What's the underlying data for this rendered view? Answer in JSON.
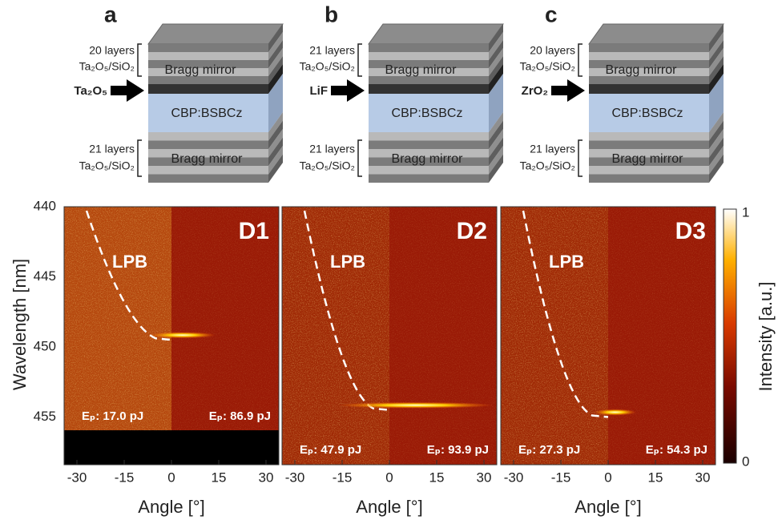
{
  "schematics": [
    {
      "letter": "a",
      "top_layers": "20 layers",
      "top_material": "Ta₂O₅/SiO₂",
      "top_label": "Bragg mirror",
      "spacer": "Ta₂O₅",
      "cavity": "CBP:BSBCz",
      "bottom_layers": "21 layers",
      "bottom_material": "Ta₂O₅/SiO₂",
      "bottom_label": "Bragg mirror"
    },
    {
      "letter": "b",
      "top_layers": "21 layers",
      "top_material": "Ta₂O₅/SiO₂",
      "top_label": "Bragg mirror",
      "spacer": "LiF",
      "cavity": "CBP:BSBCz",
      "bottom_layers": "21 layers",
      "bottom_material": "Ta₂O₅/SiO₂",
      "bottom_label": "Bragg mirror"
    },
    {
      "letter": "c",
      "top_layers": "20 layers",
      "top_material": "Ta₂O₅/SiO₂",
      "top_label": "Bragg mirror",
      "spacer": "ZrO₂",
      "cavity": "CBP:BSBCz",
      "bottom_layers": "21 layers",
      "bottom_material": "Ta₂O₅/SiO₂",
      "bottom_label": "Bragg mirror"
    }
  ],
  "plots": {
    "y_label": "Wavelength [nm]",
    "x_label": "Angle [°]",
    "yticks": [
      "440",
      "445",
      "450",
      "455"
    ],
    "xticks": [
      "-30",
      "-15",
      "0",
      "15",
      "30"
    ],
    "panels": [
      {
        "name": "D1",
        "branch": "LPB",
        "left_energy": "Eₚ: 17.0 pJ",
        "right_energy": "Eₚ: 86.9 pJ"
      },
      {
        "name": "D2",
        "branch": "LPB",
        "left_energy": "Eₚ: 47.9 pJ",
        "right_energy": "Eₚ: 93.9 pJ"
      },
      {
        "name": "D3",
        "branch": "LPB",
        "left_energy": "Eₚ: 27.3 pJ",
        "right_energy": "Eₚ: 54.3 pJ"
      }
    ]
  },
  "colorbar": {
    "label": "Intensity [a.u.]",
    "max": "1",
    "min": "0"
  }
}
